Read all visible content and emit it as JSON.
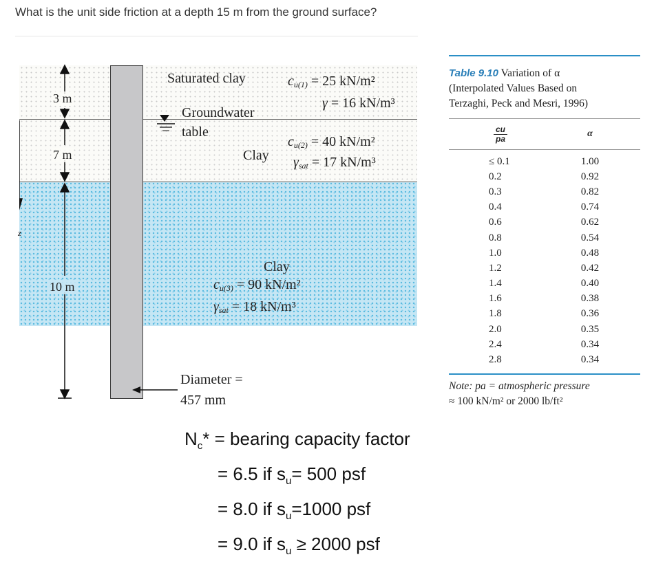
{
  "question": "What is the unit side friction at a depth 15 m from the ground surface?",
  "diagram": {
    "depth_top": "3 m",
    "depth_mid": "7 m",
    "depth_bottom": "10 m",
    "depth_axis_label": "z",
    "layer1": {
      "name": "Saturated clay",
      "cu_sym": "c",
      "cu_sub": "u(1)",
      "cu_val": "= 25 kN/m²",
      "gamma_sym": "γ",
      "gamma_val": "= 16 kN/m³"
    },
    "groundwater_label_1": "Groundwater",
    "groundwater_label_2": "table",
    "layer2": {
      "name": "Clay",
      "cu_sym": "c",
      "cu_sub": "u(2)",
      "cu_val": "= 40 kN/m²",
      "gamma_sym": "γ",
      "gamma_sub": "sat",
      "gamma_val": "= 17 kN/m³"
    },
    "layer3": {
      "name": "Clay",
      "cu_sym": "c",
      "cu_sub": "u(3)",
      "cu_val": "= 90 kN/m²",
      "gamma_sym": "γ",
      "gamma_sub": "sat",
      "gamma_val": "= 18 kN/m³"
    },
    "diameter_label": "Diameter =",
    "diameter_value": "457 mm"
  },
  "table": {
    "number": "Table 9.10",
    "title": "Variation of α",
    "subtitle_1": "(Interpolated Values Based on",
    "subtitle_2": "Terzaghi, Peck and Mesri, 1996)",
    "col1_num": "cu",
    "col1_den": "pa",
    "col2": "α",
    "rows": [
      [
        "≤ 0.1",
        "1.00"
      ],
      [
        "0.2",
        "0.92"
      ],
      [
        "0.3",
        "0.82"
      ],
      [
        "0.4",
        "0.74"
      ],
      [
        "0.6",
        "0.62"
      ],
      [
        "0.8",
        "0.54"
      ],
      [
        "1.0",
        "0.48"
      ],
      [
        "1.2",
        "0.42"
      ],
      [
        "1.4",
        "0.40"
      ],
      [
        "1.6",
        "0.38"
      ],
      [
        "1.8",
        "0.36"
      ],
      [
        "2.0",
        "0.35"
      ],
      [
        "2.4",
        "0.34"
      ],
      [
        "2.8",
        "0.34"
      ]
    ],
    "note_1": "Note: pa = atmospheric pressure",
    "note_2": "≈ 100 kN/m² or 2000 lb/ft²"
  },
  "nc": {
    "line1": "N",
    "line1_sub": "c",
    "line1_rest": "* = bearing capacity factor",
    "line2": "= 6.5 if s",
    "line2_sub": "u",
    "line2_rest": "= 500 psf",
    "line3": "= 8.0 if s",
    "line3_sub": "u",
    "line3_rest": "=1000 psf",
    "line4": "= 9.0 if s",
    "line4_sub": "u",
    "line4_rest": " ≥ 2000 psf"
  }
}
